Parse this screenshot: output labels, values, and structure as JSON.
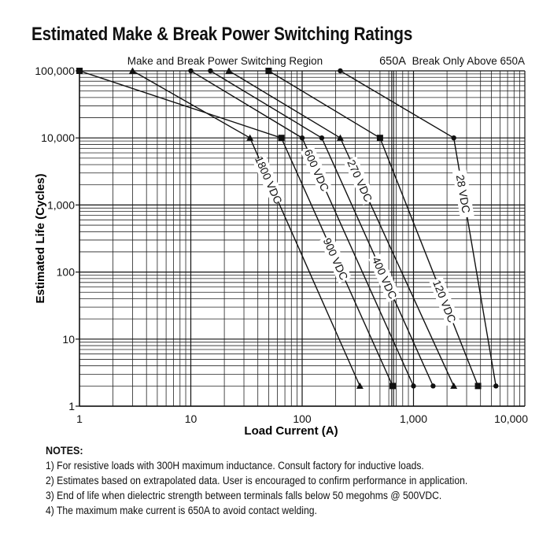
{
  "chart_data": {
    "type": "line",
    "title": "Estimated Make & Break Power Switching Ratings",
    "xlabel": "Load Current (A)",
    "ylabel": "Estimated Life (Cycles)",
    "x_scale": "log",
    "y_scale": "log",
    "xlim": [
      1,
      10000
    ],
    "ylim": [
      1,
      100000
    ],
    "x_ticks": [
      {
        "value": 1,
        "label": "1"
      },
      {
        "value": 10,
        "label": "10"
      },
      {
        "value": 100,
        "label": "100"
      },
      {
        "value": 1000,
        "label": "1,000"
      },
      {
        "value": 10000,
        "label": "10,000"
      }
    ],
    "y_ticks": [
      {
        "value": 1,
        "label": "1"
      },
      {
        "value": 10,
        "label": "10"
      },
      {
        "value": 100,
        "label": "100"
      },
      {
        "value": 1000,
        "label": "1,000"
      },
      {
        "value": 10000,
        "label": "10,000"
      },
      {
        "value": 100000,
        "label": "100,000"
      }
    ],
    "grid": true,
    "make_break_region_label": "Make and Break Power Switching Region",
    "break_only": {
      "x": 650,
      "label": "650A",
      "text": "Break Only Above 650A"
    },
    "series": [
      {
        "name": "1800 VDC",
        "marker": "triangle",
        "points": [
          [
            3,
            100000
          ],
          [
            34,
            10000
          ],
          [
            330,
            2
          ]
        ],
        "label_at": [
          50,
          2700
        ]
      },
      {
        "name": "900 VDC",
        "marker": "square",
        "points": [
          [
            1,
            100000
          ],
          [
            65,
            10000
          ],
          [
            650,
            2
          ]
        ],
        "label_at": [
          200,
          500
        ]
      },
      {
        "name": "600 VDC",
        "marker": "diamond",
        "points": [
          [
            10,
            100000
          ],
          [
            100,
            10000
          ],
          [
            1000,
            2
          ]
        ],
        "label_at": [
          135,
          4700
        ]
      },
      {
        "name": "400 VDC",
        "marker": "diamond",
        "points": [
          [
            15,
            100000
          ],
          [
            150,
            10000
          ],
          [
            1500,
            2
          ]
        ],
        "label_at": [
          550,
          220
        ]
      },
      {
        "name": "270 VDC",
        "marker": "triangle",
        "points": [
          [
            22,
            100000
          ],
          [
            220,
            10000
          ],
          [
            2300,
            2
          ]
        ],
        "label_at": [
          330,
          4700
        ]
      },
      {
        "name": "120 VDC",
        "marker": "square",
        "points": [
          [
            50,
            100000
          ],
          [
            500,
            10000
          ],
          [
            3800,
            2
          ]
        ],
        "label_at": [
          1900,
          250
        ]
      },
      {
        "name": "28 VDC",
        "marker": "diamond",
        "points": [
          [
            220,
            100000
          ],
          [
            2300,
            10000
          ],
          [
            5500,
            2
          ]
        ],
        "label_at": [
          2800,
          4000
        ]
      }
    ]
  },
  "notes": {
    "heading": "NOTES:",
    "items": [
      "1) For resistive loads with 300H maximum inductance. Consult factory for inductive loads.",
      "2) Estimates based on extrapolated data. User is encouraged to confirm performance in application.",
      "3) End of life when dielectric strength between terminals falls below 50 megohms @ 500VDC.",
      "4) The maximum make current is 650A to avoid contact welding."
    ]
  }
}
